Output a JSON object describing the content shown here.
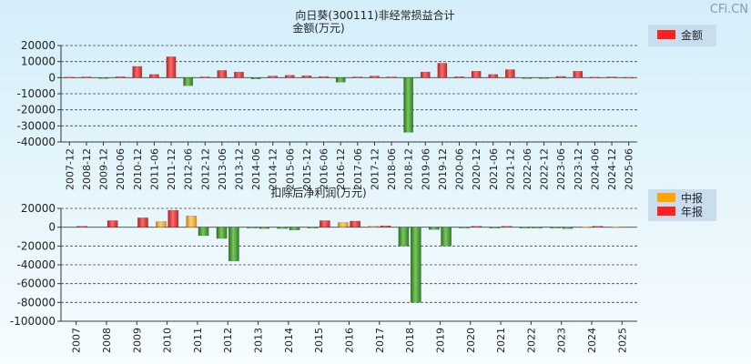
{
  "watermark": "CFi.CN",
  "colors": {
    "bg_top": "#d4eef9",
    "bg_bottom": "#f6fcff",
    "pos": "#e63a3a",
    "neg": "#3c9a2a",
    "mid": "#f5a623",
    "legend_bg": "#c9ddef",
    "grid": "#555555"
  },
  "chart_data": [
    {
      "type": "bar",
      "title": "向日葵(300111)非经常损益合计",
      "subtitle": "金额(万元)",
      "ylim": [
        -40000,
        20000
      ],
      "yticks": [
        20000,
        10000,
        0,
        -10000,
        -20000,
        -30000,
        -40000
      ],
      "legend": [
        {
          "name": "金额",
          "color": "#e63a3a"
        }
      ],
      "categories": [
        "2007-12",
        "2008-12",
        "2009-12",
        "2010-06",
        "2010-12",
        "2011-06",
        "2011-12",
        "2012-06",
        "2012-12",
        "2013-06",
        "2013-12",
        "2014-06",
        "2014-12",
        "2015-06",
        "2015-12",
        "2016-06",
        "2016-12",
        "2017-06",
        "2017-12",
        "2018-06",
        "2018-12",
        "2019-06",
        "2019-12",
        "2020-06",
        "2020-12",
        "2021-06",
        "2021-12",
        "2022-06",
        "2022-12",
        "2023-06",
        "2023-12",
        "2024-06",
        "2024-12",
        "2025-06"
      ],
      "series": [
        {
          "name": "金额",
          "values": [
            300,
            500,
            -500,
            600,
            7000,
            2000,
            13000,
            -5000,
            500,
            4500,
            3500,
            -800,
            1000,
            1500,
            1200,
            700,
            -2800,
            500,
            1000,
            500,
            -34000,
            3500,
            9000,
            600,
            4000,
            2000,
            5000,
            -500,
            -500,
            800,
            4000,
            300,
            500,
            200
          ]
        }
      ]
    },
    {
      "type": "bar",
      "title": "扣除后净利润(万元)",
      "ylim": [
        -100000,
        20000
      ],
      "yticks": [
        20000,
        0,
        -20000,
        -40000,
        -60000,
        -80000,
        -100000
      ],
      "legend": [
        {
          "name": "中报",
          "color": "#f5a623"
        },
        {
          "name": "年报",
          "color": "#e63a3a"
        }
      ],
      "categories": [
        "2007",
        "2008",
        "2009",
        "2010",
        "2011",
        "2012",
        "2013",
        "2014",
        "2015",
        "2016",
        "2017",
        "2018",
        "2019",
        "2020",
        "2021",
        "2022",
        "2023",
        "2024",
        "2025"
      ],
      "series": [
        {
          "name": "中报",
          "values": [
            null,
            null,
            null,
            6000,
            12000,
            -12000,
            -500,
            -1500,
            -1000,
            5000,
            1000,
            -20000,
            -2500,
            -500,
            -1000,
            -1000,
            -1000,
            500,
            500
          ]
        },
        {
          "name": "年报",
          "values": [
            1000,
            7000,
            10000,
            18000,
            -9000,
            -36000,
            -1500,
            -3000,
            7000,
            6500,
            1500,
            -80000,
            -20000,
            1000,
            1000,
            -1000,
            -1500,
            1000,
            null
          ]
        }
      ]
    }
  ]
}
